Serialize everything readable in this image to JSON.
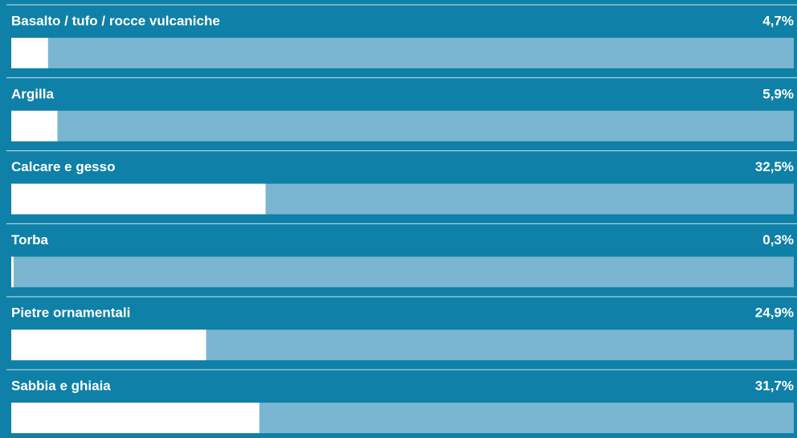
{
  "chart_data": {
    "type": "bar",
    "categories": [
      "Basalto / tufo / rocce vulcaniche",
      "Argilla",
      "Calcare e gesso",
      "Torba",
      "Pietre ornamentali",
      "Sabbia e ghiaia"
    ],
    "values": [
      4.7,
      5.9,
      32.5,
      0.3,
      24.9,
      31.7
    ],
    "value_labels": [
      "4,7%",
      "5,9%",
      "32,5%",
      "0,3%",
      "24,9%",
      "31,7%"
    ],
    "xlim": [
      0,
      100
    ],
    "color": "#ffffff"
  }
}
